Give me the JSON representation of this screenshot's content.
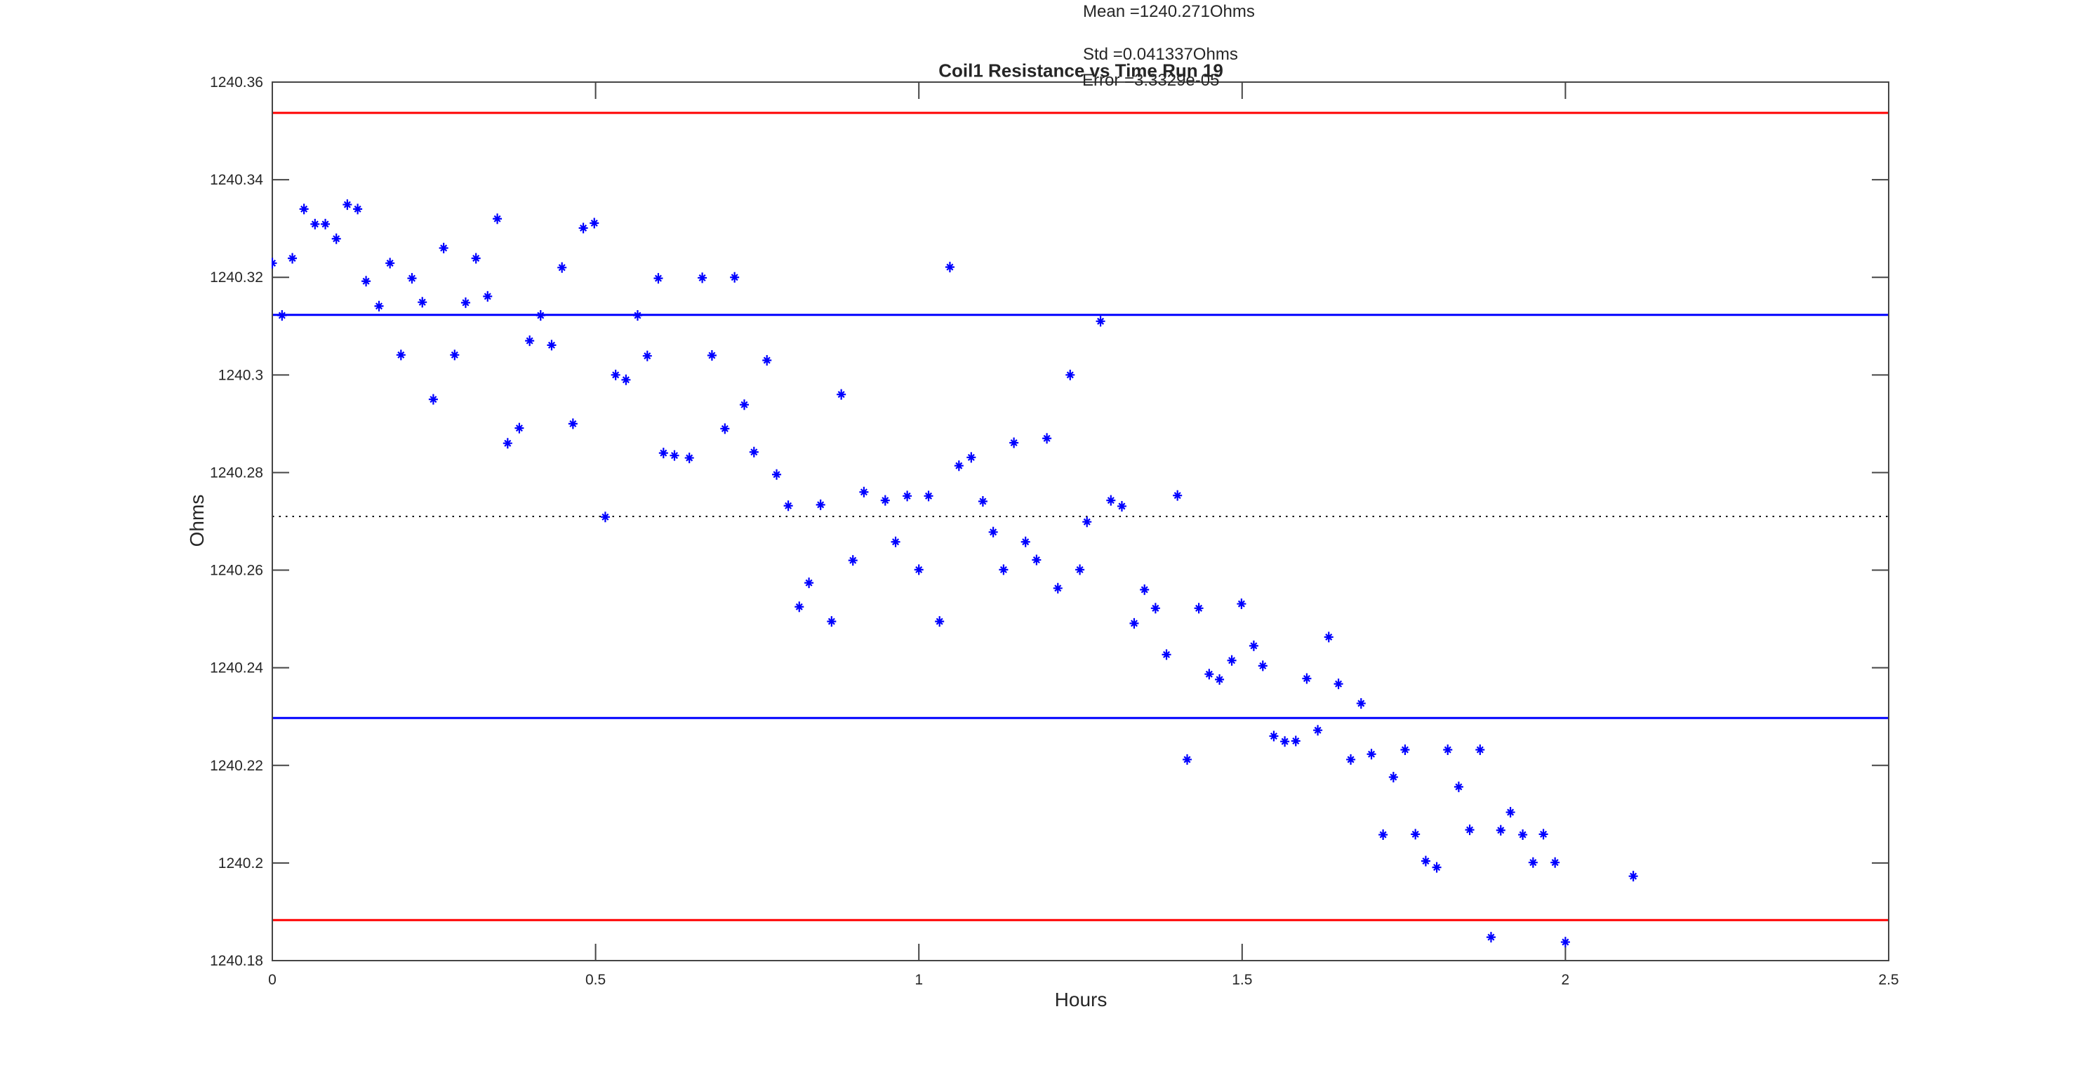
{
  "figure": {
    "background": "#ffffff",
    "annotations": {
      "mean_label": "Mean =1240.271Ohms",
      "std_label": "Std =0.041337Ohms",
      "error_label": "Error =3.3329e-05"
    }
  },
  "chart_data": {
    "type": "scatter",
    "title": "Coil1 Resistance vs Time Run 19",
    "xlabel": "Hours",
    "ylabel": "Ohms",
    "xlim": [
      0,
      2.5
    ],
    "ylim": [
      1240.18,
      1240.36
    ],
    "grid": false,
    "legend": "none",
    "axis_color": "#454545",
    "tick_label_color": "#262626",
    "xticks": {
      "values": [
        0,
        0.5,
        1,
        1.5,
        2,
        2.5
      ],
      "labels": [
        "0",
        "0.5",
        "1",
        "1.5",
        "2",
        "2.5"
      ]
    },
    "yticks": {
      "values": [
        1240.18,
        1240.2,
        1240.22,
        1240.24,
        1240.26,
        1240.28,
        1240.3,
        1240.32,
        1240.34,
        1240.36
      ],
      "labels": [
        "1240.18",
        "1240.2",
        "1240.22",
        "1240.24",
        "1240.26",
        "1240.28",
        "1240.3",
        "1240.32",
        "1240.34",
        "1240.36"
      ]
    },
    "stats": {
      "mean": 1240.271,
      "std": 0.041337,
      "error": 3.3329e-05
    },
    "marker": {
      "shape": "asterisk",
      "color": "#0000ff",
      "size": 15
    },
    "reference_lines": [
      {
        "name": "mean",
        "value": 1240.271,
        "color": "#000000",
        "style": "dotted"
      },
      {
        "name": "mean-plus-1std",
        "value": 1240.3123,
        "color": "#0000ff",
        "style": "solid"
      },
      {
        "name": "mean-minus-1std",
        "value": 1240.2297,
        "color": "#0000ff",
        "style": "solid"
      },
      {
        "name": "mean-plus-2std",
        "value": 1240.3537,
        "color": "#ff0000",
        "style": "solid"
      },
      {
        "name": "mean-minus-2std",
        "value": 1240.1883,
        "color": "#ff0000",
        "style": "solid"
      }
    ],
    "series": [
      {
        "name": "Coil1 Resistance",
        "points": [
          [
            0.0,
            1240.3229
          ],
          [
            0.015,
            1240.3122
          ],
          [
            0.031,
            1240.3239
          ],
          [
            0.049,
            1240.334
          ],
          [
            0.066,
            1240.3309
          ],
          [
            0.082,
            1240.3309
          ],
          [
            0.099,
            1240.3279
          ],
          [
            0.116,
            1240.3349
          ],
          [
            0.132,
            1240.334
          ],
          [
            0.145,
            1240.3192
          ],
          [
            0.165,
            1240.3141
          ],
          [
            0.182,
            1240.3229
          ],
          [
            0.199,
            1240.3041
          ],
          [
            0.216,
            1240.3198
          ],
          [
            0.232,
            1240.3149
          ],
          [
            0.249,
            1240.295
          ],
          [
            0.265,
            1240.326
          ],
          [
            0.282,
            1240.3041
          ],
          [
            0.299,
            1240.3148
          ],
          [
            0.315,
            1240.3239
          ],
          [
            0.333,
            1240.3161
          ],
          [
            0.348,
            1240.332
          ],
          [
            0.364,
            1240.286
          ],
          [
            0.382,
            1240.2891
          ],
          [
            0.398,
            1240.307
          ],
          [
            0.415,
            1240.3122
          ],
          [
            0.432,
            1240.3061
          ],
          [
            0.448,
            1240.322
          ],
          [
            0.465,
            1240.29
          ],
          [
            0.481,
            1240.3301
          ],
          [
            0.498,
            1240.3311
          ],
          [
            0.515,
            1240.2709
          ],
          [
            0.531,
            1240.3
          ],
          [
            0.547,
            1240.299
          ],
          [
            0.565,
            1240.3122
          ],
          [
            0.58,
            1240.3039
          ],
          [
            0.597,
            1240.3198
          ],
          [
            0.605,
            1240.284
          ],
          [
            0.622,
            1240.2835
          ],
          [
            0.645,
            1240.283
          ],
          [
            0.665,
            1240.3199
          ],
          [
            0.68,
            1240.304
          ],
          [
            0.7,
            1240.289
          ],
          [
            0.715,
            1240.32
          ],
          [
            0.73,
            1240.2939
          ],
          [
            0.745,
            1240.2842
          ],
          [
            0.765,
            1240.303
          ],
          [
            0.78,
            1240.2796
          ],
          [
            0.798,
            1240.2732
          ],
          [
            0.815,
            1240.2525
          ],
          [
            0.83,
            1240.2574
          ],
          [
            0.848,
            1240.2734
          ],
          [
            0.865,
            1240.2495
          ],
          [
            0.88,
            1240.296
          ],
          [
            0.898,
            1240.262
          ],
          [
            0.915,
            1240.276
          ],
          [
            0.948,
            1240.2743
          ],
          [
            0.964,
            1240.2658
          ],
          [
            0.982,
            1240.2752
          ],
          [
            1.0,
            1240.2601
          ],
          [
            1.015,
            1240.2752
          ],
          [
            1.032,
            1240.2495
          ],
          [
            1.048,
            1240.3221
          ],
          [
            1.062,
            1240.2814
          ],
          [
            1.081,
            1240.2831
          ],
          [
            1.099,
            1240.2741
          ],
          [
            1.115,
            1240.2678
          ],
          [
            1.131,
            1240.2601
          ],
          [
            1.147,
            1240.2861
          ],
          [
            1.165,
            1240.2658
          ],
          [
            1.182,
            1240.2621
          ],
          [
            1.198,
            1240.287
          ],
          [
            1.215,
            1240.2563
          ],
          [
            1.234,
            1240.3
          ],
          [
            1.249,
            1240.2601
          ],
          [
            1.26,
            1240.2699
          ],
          [
            1.281,
            1240.311
          ],
          [
            1.297,
            1240.2743
          ],
          [
            1.314,
            1240.2731
          ],
          [
            1.333,
            1240.2491
          ],
          [
            1.349,
            1240.256
          ],
          [
            1.366,
            1240.2522
          ],
          [
            1.383,
            1240.2427
          ],
          [
            1.4,
            1240.2753
          ],
          [
            1.415,
            1240.2212
          ],
          [
            1.433,
            1240.2522
          ],
          [
            1.449,
            1240.2387
          ],
          [
            1.465,
            1240.2376
          ],
          [
            1.484,
            1240.2415
          ],
          [
            1.499,
            1240.2531
          ],
          [
            1.518,
            1240.2445
          ],
          [
            1.532,
            1240.2404
          ],
          [
            1.549,
            1240.226
          ],
          [
            1.566,
            1240.2249
          ],
          [
            1.583,
            1240.225
          ],
          [
            1.6,
            1240.2378
          ],
          [
            1.617,
            1240.2272
          ],
          [
            1.634,
            1240.2463
          ],
          [
            1.649,
            1240.2367
          ],
          [
            1.668,
            1240.2212
          ],
          [
            1.684,
            1240.2327
          ],
          [
            1.7,
            1240.2223
          ],
          [
            1.718,
            1240.2058
          ],
          [
            1.734,
            1240.2176
          ],
          [
            1.752,
            1240.2232
          ],
          [
            1.768,
            1240.2059
          ],
          [
            1.784,
            1240.2004
          ],
          [
            1.801,
            1240.1991
          ],
          [
            1.818,
            1240.2232
          ],
          [
            1.835,
            1240.2156
          ],
          [
            1.852,
            1240.2068
          ],
          [
            1.868,
            1240.2232
          ],
          [
            1.885,
            1240.1848
          ],
          [
            1.9,
            1240.2067
          ],
          [
            1.915,
            1240.2104
          ],
          [
            1.934,
            1240.2058
          ],
          [
            1.95,
            1240.2001
          ],
          [
            1.966,
            1240.2059
          ],
          [
            1.984,
            1240.2001
          ],
          [
            2.0,
            1240.1838
          ],
          [
            2.105,
            1240.1973
          ]
        ]
      }
    ]
  }
}
